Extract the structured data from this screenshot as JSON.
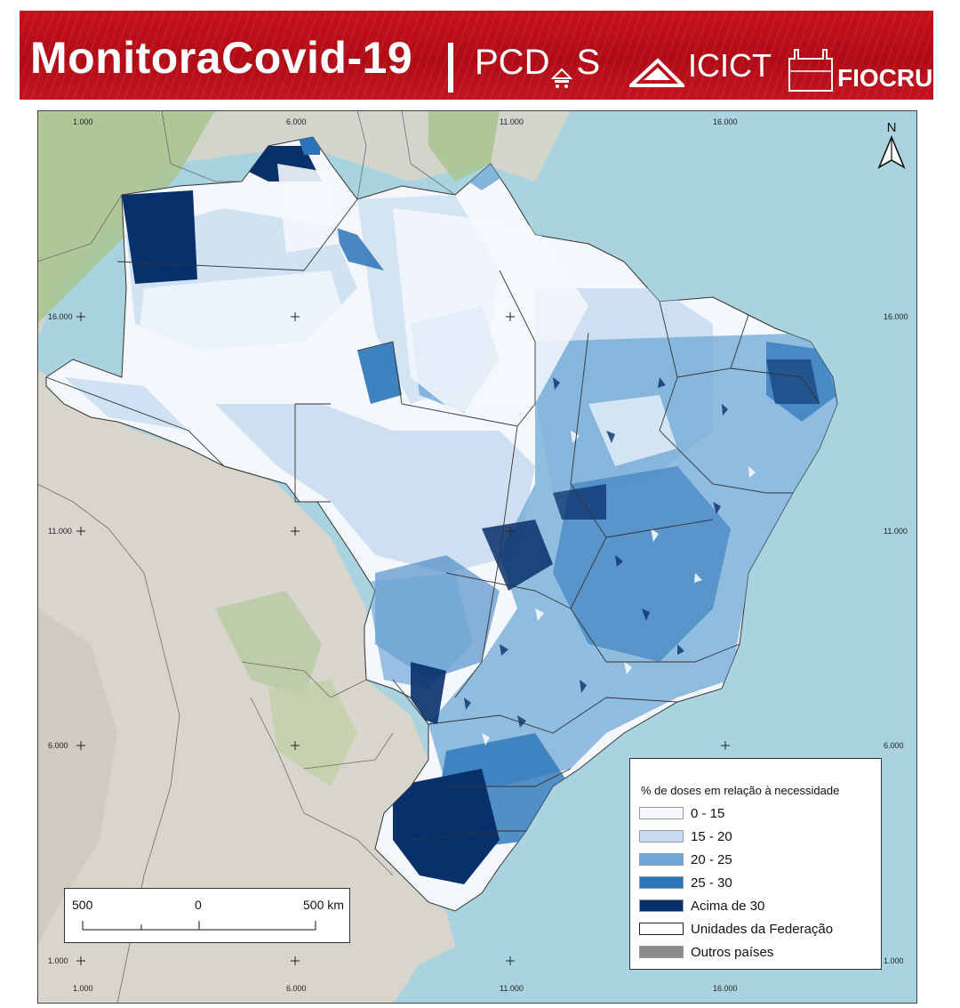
{
  "banner": {
    "title": "MonitoraCovid-19",
    "pcdas": "PCD",
    "pcdas_end": "S",
    "icict": "ICICT",
    "fiocruz": "FIOCRUZ",
    "color": "#c8101c"
  },
  "map": {
    "coords_top": [
      "1.000",
      "6.000",
      "11.000",
      "16.000"
    ],
    "coords_bottom": [
      "1.000",
      "6.000",
      "11.000",
      "16.000"
    ],
    "coords_left": [
      "16.000",
      "11.000",
      "6.000",
      "1.000"
    ],
    "coords_right": [
      "16.000",
      "11.000",
      "6.000",
      "1.000"
    ],
    "north_label": "N",
    "ocean_color": "#a9d3de",
    "land_color": "#d9d5ce",
    "vegetation_color": "#a8c48e"
  },
  "legend": {
    "title": "% de doses em relação à necessidade",
    "items": [
      {
        "label": "0 - 15",
        "color": "#f4f8fd"
      },
      {
        "label": "15 - 20",
        "color": "#c6dbef"
      },
      {
        "label": "20 - 25",
        "color": "#6fa8d6"
      },
      {
        "label": "25 - 30",
        "color": "#2b74b9"
      },
      {
        "label": "Acima de 30",
        "color": "#08306b"
      },
      {
        "label": "Unidades da Federação",
        "color": "#ffffff"
      },
      {
        "label": "Outros países",
        "color": "#8a8a8a"
      }
    ]
  },
  "scale_bar": {
    "left_label": "500",
    "mid_label": "0",
    "right_label": "500 km"
  }
}
